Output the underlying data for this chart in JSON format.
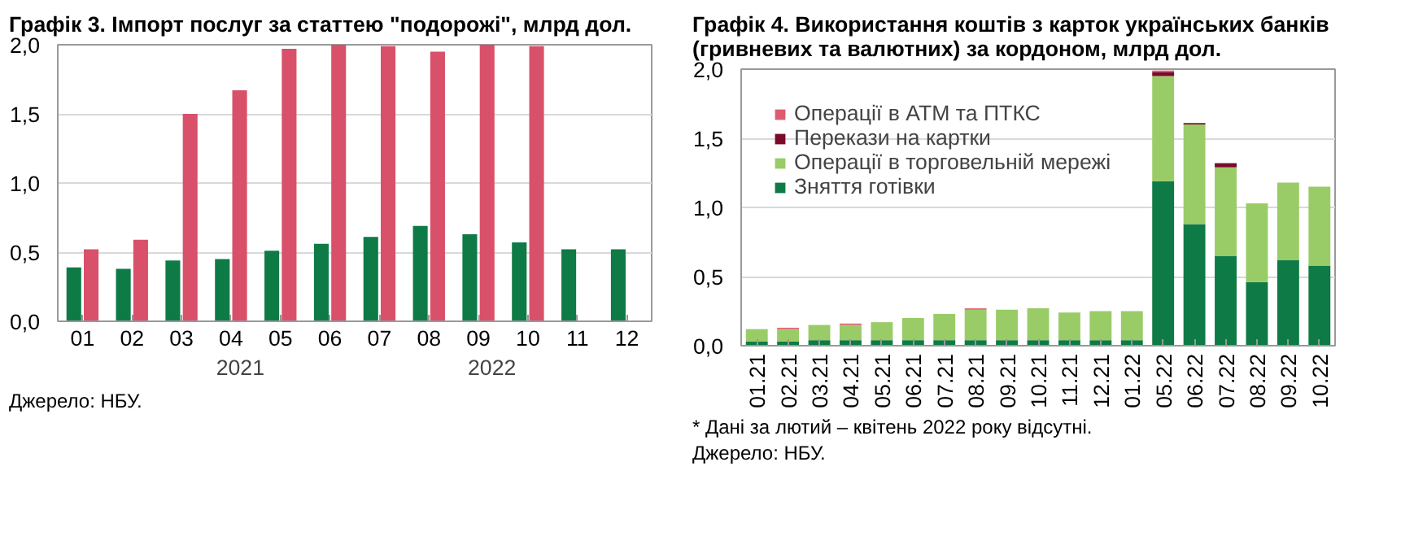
{
  "chart_data": [
    {
      "type": "bar",
      "title": "Графік 3. Імпорт послуг за статтею \"подорожі\", млрд дол.",
      "categories": [
        "01",
        "02",
        "03",
        "04",
        "05",
        "06",
        "07",
        "08",
        "09",
        "10",
        "11",
        "12"
      ],
      "series": [
        {
          "name": "2021",
          "color": "#0e7a45",
          "values": [
            0.39,
            0.38,
            0.44,
            0.45,
            0.51,
            0.56,
            0.61,
            0.69,
            0.63,
            0.57,
            0.52,
            0.52
          ]
        },
        {
          "name": "2022",
          "color": "#d9506a",
          "values": [
            0.52,
            0.59,
            1.5,
            1.67,
            1.97,
            2.0,
            1.99,
            1.95,
            2.0,
            1.99,
            null,
            null
          ]
        }
      ],
      "ylim": [
        0,
        2
      ],
      "yticks": [
        {
          "value": 0,
          "label": "0,0"
        },
        {
          "value": 0.5,
          "label": "0,5"
        },
        {
          "value": 1,
          "label": "1,0"
        },
        {
          "value": 1.5,
          "label": "1,5"
        },
        {
          "value": 2,
          "label": "2,0"
        }
      ],
      "grid": "y",
      "legend": "bottom",
      "annotations": [
        "Джерело: НБУ."
      ]
    },
    {
      "type": "bar",
      "stacked": true,
      "title": "Графік 4. Використання коштів з карток українських банків (гривневих та валютних) за кордоном, млрд дол.",
      "categories": [
        "01.21",
        "02.21",
        "03.21",
        "04.21",
        "05.21",
        "06.21",
        "07.21",
        "08.21",
        "09.21",
        "10.21",
        "11.21",
        "12.21",
        "01.22",
        "05.22",
        "06.22",
        "07.22",
        "08.22",
        "09.22",
        "10.22"
      ],
      "series": [
        {
          "name": "Зняття готівки",
          "color": "#0e7a45",
          "values": [
            0.03,
            0.03,
            0.04,
            0.04,
            0.04,
            0.04,
            0.04,
            0.04,
            0.04,
            0.04,
            0.04,
            0.04,
            0.04,
            1.19,
            0.88,
            0.65,
            0.46,
            0.62,
            0.58
          ]
        },
        {
          "name": "Операції в торговельній мережі",
          "color": "#99cc66",
          "values": [
            0.09,
            0.09,
            0.11,
            0.11,
            0.13,
            0.16,
            0.19,
            0.22,
            0.22,
            0.23,
            0.2,
            0.21,
            0.21,
            0.76,
            0.72,
            0.64,
            0.57,
            0.56,
            0.57
          ]
        },
        {
          "name": "Перекази на картки",
          "color": "#7a0a2a",
          "values": [
            0,
            0,
            0,
            0,
            0,
            0,
            0,
            0,
            0,
            0,
            0,
            0,
            0,
            0.03,
            0.01,
            0.03,
            0,
            0,
            0
          ]
        },
        {
          "name": "Операції в АТМ та ПТКС",
          "color": "#e05a70",
          "values": [
            0,
            0.01,
            0,
            0.01,
            0,
            0,
            0,
            0.01,
            0,
            0,
            0,
            0,
            0,
            0.01,
            0,
            0,
            0,
            0,
            0
          ]
        }
      ],
      "ylim": [
        0,
        2
      ],
      "yticks": [
        {
          "value": 0,
          "label": "0,0"
        },
        {
          "value": 0.5,
          "label": "0,5"
        },
        {
          "value": 1,
          "label": "1,0"
        },
        {
          "value": 1.5,
          "label": "1,5"
        },
        {
          "value": 2,
          "label": "2,0"
        }
      ],
      "grid": "y",
      "legend": "top left",
      "annotations": [
        "* Дані за лютий – квітень 2022 року відсутні.",
        "Джерело: НБУ."
      ]
    }
  ]
}
